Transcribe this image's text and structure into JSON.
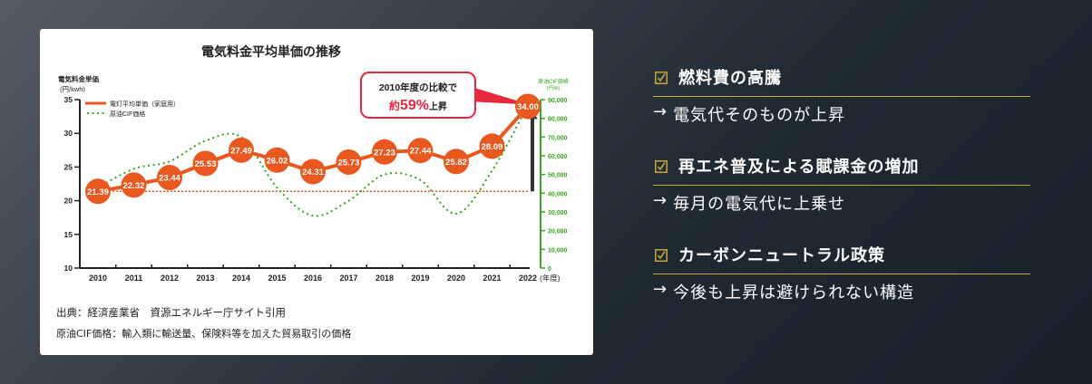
{
  "chart_data": {
    "type": "line",
    "title": "電気料金平均単価の推移",
    "x": [
      "2010",
      "2011",
      "2012",
      "2013",
      "2014",
      "2015",
      "2016",
      "2017",
      "2018",
      "2019",
      "2020",
      "2021",
      "2022"
    ],
    "x_suffix": "(年度)",
    "series": [
      {
        "name": "電灯平均単価（家庭用）",
        "axis": "left",
        "color": "#e8581f",
        "values": [
          21.39,
          22.32,
          23.44,
          25.53,
          27.49,
          26.02,
          24.31,
          25.73,
          27.23,
          27.44,
          25.82,
          28.09,
          34.0
        ]
      },
      {
        "name": "原油CIF価格",
        "axis": "right",
        "color": "#3aa520",
        "style": "dotted",
        "values": [
          43000,
          53000,
          57000,
          68000,
          70000,
          43000,
          28000,
          36000,
          50000,
          47000,
          29000,
          52000,
          87000
        ]
      }
    ],
    "ylabel": "電気料金単価\n(円/kwh)",
    "ylim": [
      10,
      35
    ],
    "yticks": [
      10,
      15,
      20,
      25,
      30,
      35
    ],
    "y2label": "原油CIF価格\n(円/kl)",
    "y2lim": [
      0,
      90000
    ],
    "y2ticks": [
      "0",
      "10,000",
      "20,000",
      "30,000",
      "40,000",
      "50,000",
      "60,000",
      "70,000",
      "80,000",
      "90,000"
    ],
    "reference_line": {
      "value": 21.39,
      "style": "dotted",
      "color": "#e8581f"
    },
    "annotation": {
      "line1": "2010年度の比較で",
      "prefix": "約",
      "pct": "59%",
      "suffix": "上昇"
    },
    "legend": {
      "position": "top-left"
    }
  },
  "card": {
    "source_line1": "出典：経済産業省　資源エネルギー庁サイト引用",
    "source_line2": "原油CIF価格：輸入類に輸送量、保険料等を加えた貿易取引の価格"
  },
  "points": [
    {
      "title": "燃料費の高騰",
      "sub": "電気代そのものが上昇"
    },
    {
      "title": "再エネ普及による賦課金の増加",
      "sub": "毎月の電気代に上乗せ"
    },
    {
      "title": "カーボンニュートラル政策",
      "sub": "今後も上昇は避けられない構造"
    }
  ],
  "arrow_glyph": "→",
  "colors": {
    "accent_gold": "#c9a33b",
    "orange": "#e8581f",
    "green": "#3aa520",
    "callout_red": "#e8283c"
  }
}
